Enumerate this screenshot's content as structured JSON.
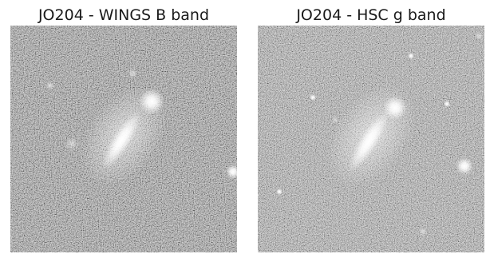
{
  "panels": [
    {
      "title": "JO204 - WINGS B band"
    },
    {
      "title": "JO204 - HSC g band"
    }
  ]
}
